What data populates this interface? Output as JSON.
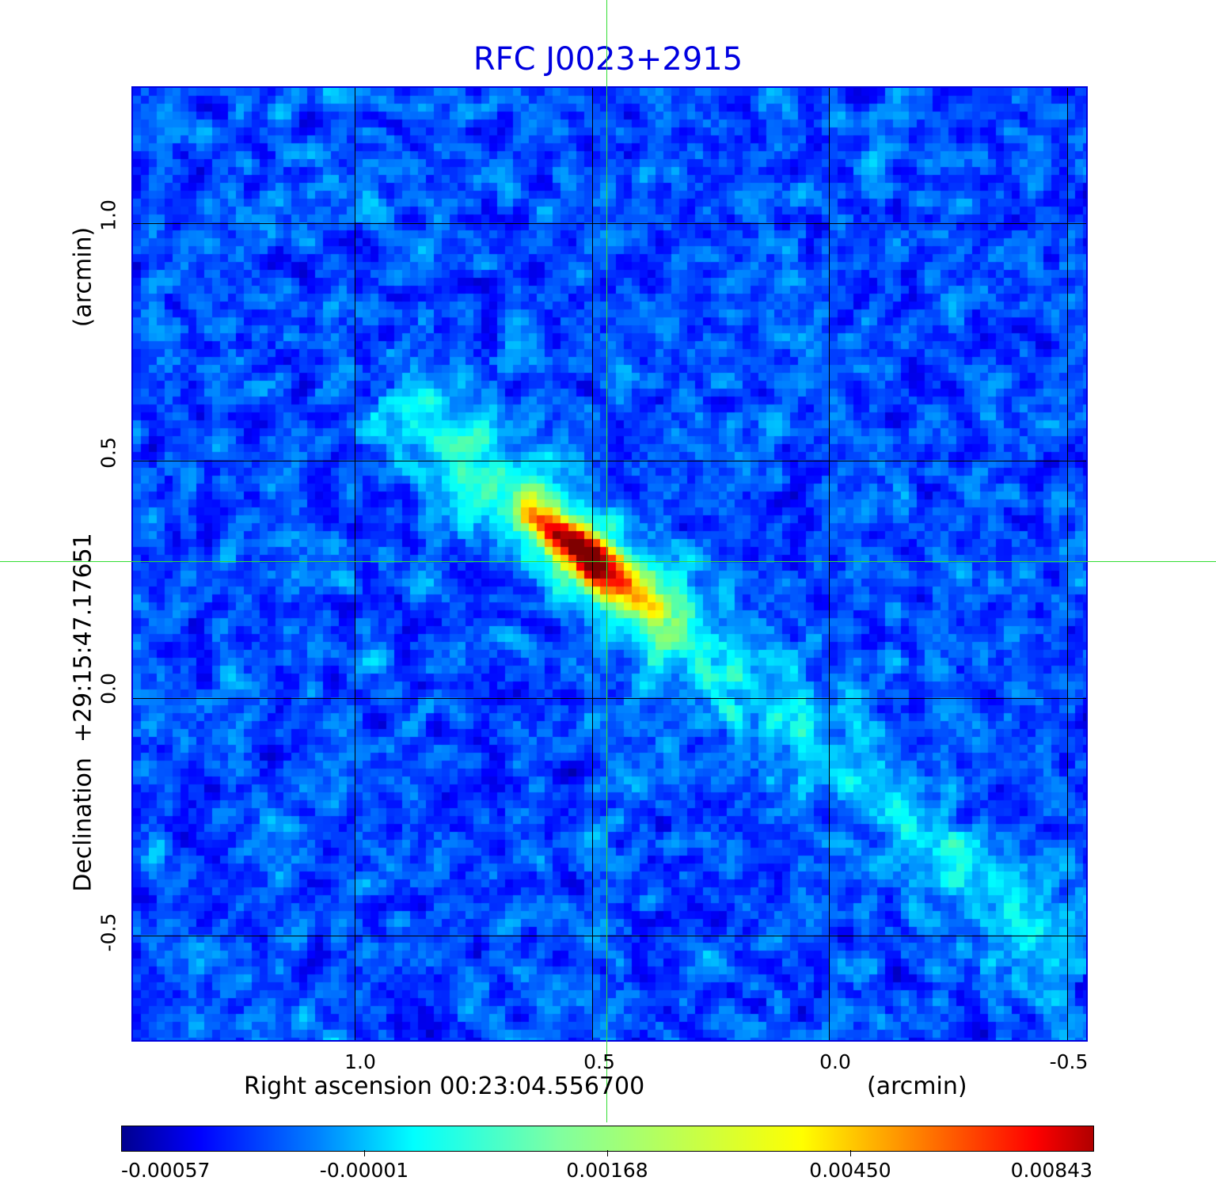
{
  "title": "RFC J0023+2915",
  "x_axis": {
    "label": "Right ascension  00:23:04.556700",
    "unit": "(arcmin)",
    "ticks": [
      "1.0",
      "0.5",
      "0.0",
      "-0.5"
    ]
  },
  "y_axis": {
    "label": "Declination  +29:15:47.17651",
    "unit": "(arcmin)",
    "ticks": [
      "1.0",
      "0.5",
      "0.0",
      "-0.5"
    ]
  },
  "colorbar": {
    "colormap": "jet",
    "ticks": [
      "-0.00057",
      "-0.00001",
      "0.00168",
      "0.00450",
      "0.00843"
    ]
  },
  "colors": {
    "title": "#0000e0",
    "frame": "#0000dd",
    "crosshair": "#33dd33"
  },
  "chart_data": {
    "type": "heatmap",
    "title": "RFC J0023+2915",
    "xlabel": "Right ascension  00:23:04.556700 (arcmin)",
    "ylabel": "Declination  +29:15:47.17651 (arcmin)",
    "xlim": [
      1.47,
      -0.54
    ],
    "ylim": [
      -0.72,
      1.29
    ],
    "xticks": [
      1.0,
      0.5,
      0.0,
      -0.5
    ],
    "yticks": [
      1.0,
      0.5,
      0.0,
      -0.5
    ],
    "value_range": [
      -0.00057,
      0.00843
    ],
    "colorbar_ticks": [
      -0.00057,
      -1e-05,
      0.00168,
      0.0045,
      0.00843
    ],
    "peak": {
      "x": 0.48,
      "y": 0.29,
      "value": 0.00843
    },
    "grid": true
  }
}
